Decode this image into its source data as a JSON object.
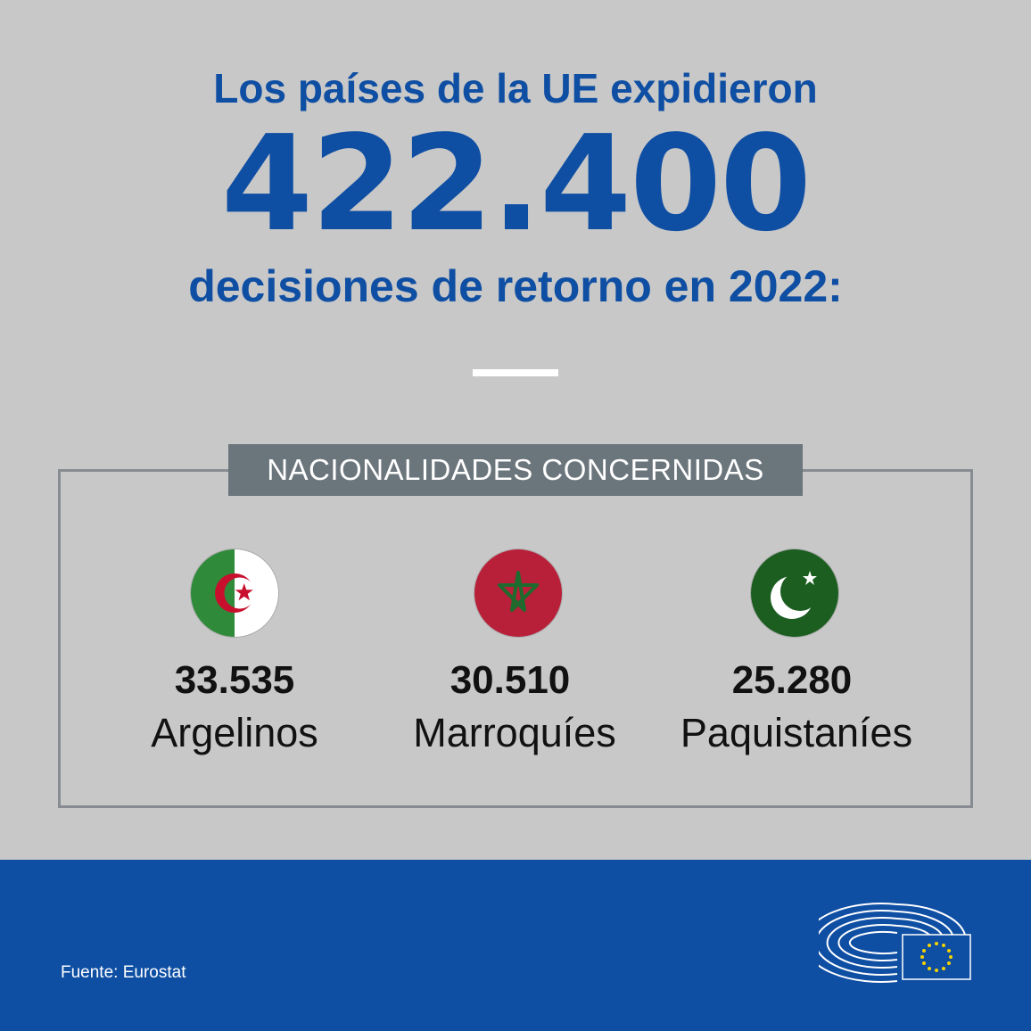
{
  "headline": {
    "line1": "Los países de la UE expidieron",
    "number": "422.400",
    "line3": "decisiones de retorno en 2022:"
  },
  "section": {
    "label": "NACIONALIDADES CONCERNIDAS"
  },
  "nationalities": [
    {
      "value": "33.535",
      "label": "Argelinos",
      "flag_icon": "algeria-flag-icon"
    },
    {
      "value": "30.510",
      "label": "Marroquíes",
      "flag_icon": "morocco-flag-icon"
    },
    {
      "value": "25.280",
      "label": "Paquistaníes",
      "flag_icon": "pakistan-flag-icon"
    }
  ],
  "footer": {
    "source": "Fuente: Eurostat",
    "logo_icon": "european-parliament-logo-icon"
  },
  "colors": {
    "background": "#c8c8c8",
    "brand_blue": "#0e4ea3",
    "label_bg": "#6b757c",
    "frame": "#888c92"
  }
}
